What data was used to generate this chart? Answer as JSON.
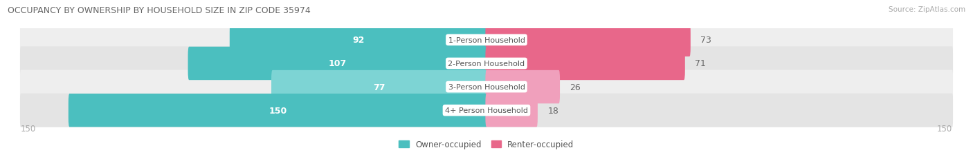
{
  "title": "OCCUPANCY BY OWNERSHIP BY HOUSEHOLD SIZE IN ZIP CODE 35974",
  "source": "Source: ZipAtlas.com",
  "categories": [
    "1-Person Household",
    "2-Person Household",
    "3-Person Household",
    "4+ Person Household"
  ],
  "owner_values": [
    92,
    107,
    77,
    150
  ],
  "renter_values": [
    73,
    71,
    26,
    18
  ],
  "max_val": 150,
  "owner_color_large": "#4BBFBF",
  "owner_color_small": "#7DD4D4",
  "renter_color_large": "#E8678A",
  "renter_color_small": "#F0A0BC",
  "row_bg_color_odd": "#eeeeee",
  "row_bg_color_even": "#e4e4e4",
  "axis_label_color": "#aaaaaa",
  "title_color": "#555555",
  "background_color": "#ffffff",
  "legend_owner": "Owner-occupied",
  "legend_renter": "Renter-occupied",
  "owner_threshold": 50,
  "renter_threshold": 40
}
